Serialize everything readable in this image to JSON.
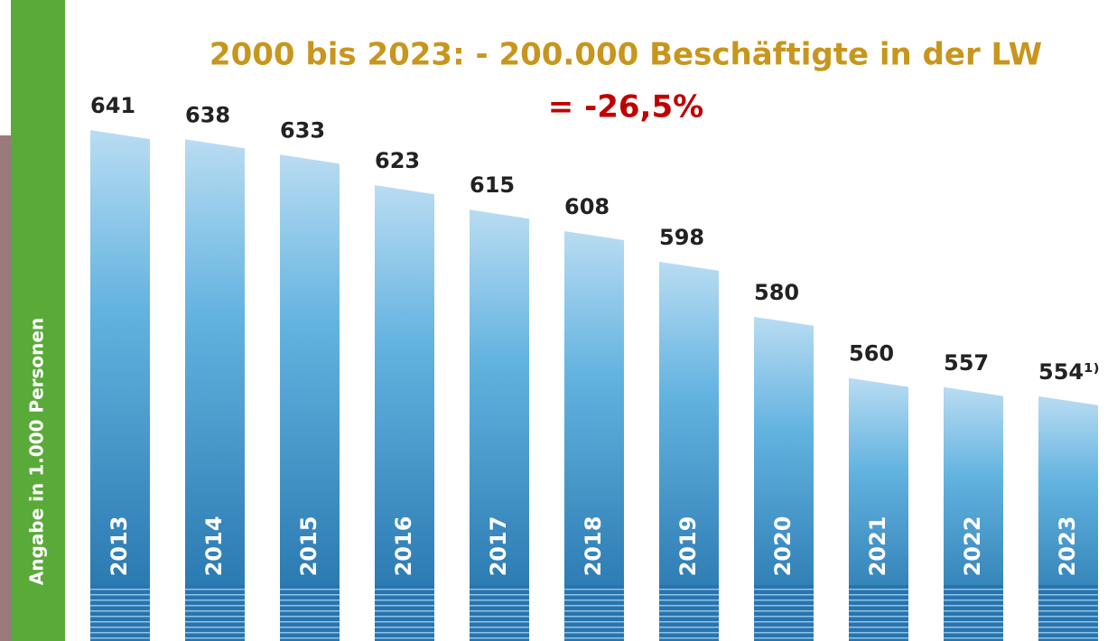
{
  "chart_data": {
    "type": "bar",
    "title": "2000 bis 2023: - 200.000 Beschäftigte in der LW",
    "subtitle": "= -26,5%",
    "y_label": "Angabe in 1.000 Personen",
    "categories": [
      "2013",
      "2014",
      "2015",
      "2016",
      "2017",
      "2018",
      "2019",
      "2020",
      "2021",
      "2022",
      "2023"
    ],
    "values": [
      641,
      638,
      633,
      623,
      615,
      608,
      598,
      580,
      560,
      557,
      554
    ],
    "value_labels": [
      "641",
      "638",
      "633",
      "623",
      "615",
      "608",
      "598",
      "580",
      "560",
      "557",
      "554¹⁾"
    ],
    "color": "#2f86bf",
    "ylim": [
      474,
      680
    ]
  }
}
